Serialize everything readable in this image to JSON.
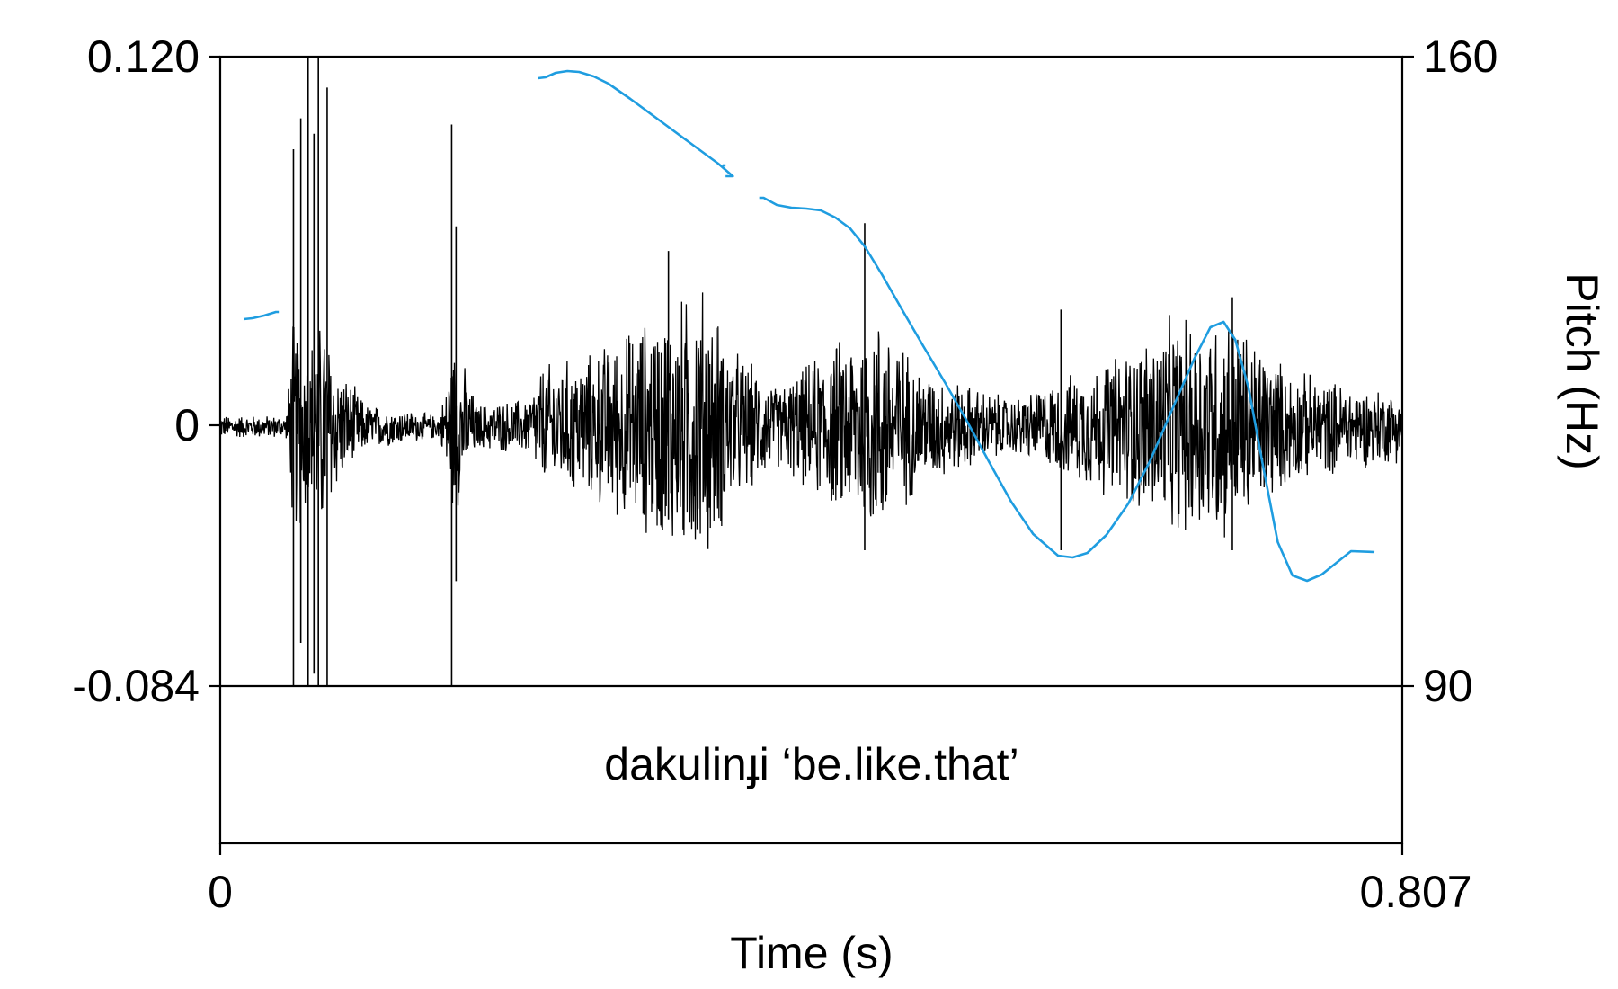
{
  "chart_data": {
    "type": "line",
    "title": "",
    "xlabel": "Time (s)",
    "ylabel_right": "Pitch (Hz)",
    "x_range": [
      0,
      0.807
    ],
    "x_tick_labels": [
      "0",
      "0.807"
    ],
    "amplitude_range": [
      -0.084,
      0.12
    ],
    "amplitude_tick_labels": [
      "0.120",
      "0",
      "-0.084"
    ],
    "pitch_range": [
      90,
      160
    ],
    "pitch_tick_labels": [
      "160",
      "90"
    ],
    "annotation": "dakulinɟi ‘be.like.that’",
    "colors": {
      "waveform": "#000000",
      "pitch": "#1f9de0",
      "frame": "#000000"
    },
    "series": [
      {
        "name": "Pitch",
        "segments": [
          [
            [
              0.016,
              130.8
            ],
            [
              0.022,
              130.9
            ],
            [
              0.03,
              131.2
            ],
            [
              0.038,
              131.6
            ],
            [
              0.04,
              131.6
            ]
          ],
          [
            [
              0.217,
              157.6
            ],
            [
              0.222,
              157.7
            ],
            [
              0.229,
              158.2
            ],
            [
              0.237,
              158.4
            ],
            [
              0.245,
              158.3
            ],
            [
              0.255,
              157.8
            ],
            [
              0.265,
              157.0
            ],
            [
              0.28,
              155.3
            ],
            [
              0.3,
              152.9
            ],
            [
              0.32,
              150.5
            ],
            [
              0.34,
              148.1
            ],
            [
              0.35,
              146.7
            ],
            [
              0.345,
              146.7
            ]
          ],
          [
            [
              0.343,
              147.9
            ],
            [
              0.345,
              147.9
            ]
          ],
          [
            [
              0.368,
              144.3
            ],
            [
              0.371,
              144.3
            ],
            [
              0.38,
              143.5
            ],
            [
              0.39,
              143.2
            ],
            [
              0.4,
              143.1
            ],
            [
              0.41,
              142.9
            ],
            [
              0.42,
              142.1
            ],
            [
              0.43,
              140.9
            ],
            [
              0.44,
              138.9
            ],
            [
              0.452,
              135.7
            ],
            [
              0.465,
              132.0
            ],
            [
              0.48,
              127.8
            ],
            [
              0.495,
              123.7
            ],
            [
              0.51,
              119.4
            ],
            [
              0.525,
              114.9
            ],
            [
              0.54,
              110.5
            ],
            [
              0.555,
              106.9
            ],
            [
              0.572,
              104.5
            ],
            [
              0.582,
              104.3
            ],
            [
              0.592,
              104.8
            ],
            [
              0.605,
              106.8
            ],
            [
              0.62,
              110.3
            ],
            [
              0.635,
              115.1
            ],
            [
              0.65,
              120.8
            ],
            [
              0.665,
              126.4
            ],
            [
              0.676,
              129.9
            ],
            [
              0.685,
              130.5
            ],
            [
              0.693,
              128.5
            ],
            [
              0.702,
              123.2
            ],
            [
              0.712,
              114.4
            ],
            [
              0.722,
              106.0
            ],
            [
              0.732,
              102.3
            ],
            [
              0.742,
              101.7
            ],
            [
              0.752,
              102.4
            ],
            [
              0.762,
              103.7
            ],
            [
              0.772,
              105.0
            ],
            [
              0.788,
              104.9
            ]
          ]
        ]
      }
    ],
    "waveform": {
      "description_free": true,
      "envelope": [
        [
          0.0,
          0.004
        ],
        [
          0.045,
          0.004
        ],
        [
          0.05,
          0.04
        ],
        [
          0.06,
          0.03
        ],
        [
          0.07,
          0.04
        ],
        [
          0.08,
          0.022
        ],
        [
          0.1,
          0.008
        ],
        [
          0.15,
          0.004
        ],
        [
          0.16,
          0.032
        ],
        [
          0.175,
          0.008
        ],
        [
          0.21,
          0.01
        ],
        [
          0.22,
          0.022
        ],
        [
          0.25,
          0.025
        ],
        [
          0.29,
          0.038
        ],
        [
          0.33,
          0.05
        ],
        [
          0.35,
          0.028
        ],
        [
          0.38,
          0.014
        ],
        [
          0.42,
          0.03
        ],
        [
          0.45,
          0.04
        ],
        [
          0.48,
          0.02
        ],
        [
          0.54,
          0.01
        ],
        [
          0.58,
          0.018
        ],
        [
          0.62,
          0.028
        ],
        [
          0.65,
          0.038
        ],
        [
          0.69,
          0.04
        ],
        [
          0.73,
          0.02
        ],
        [
          0.77,
          0.015
        ],
        [
          0.807,
          0.012
        ]
      ],
      "spikes": [
        [
          0.05,
          0.09,
          -0.084
        ],
        [
          0.055,
          0.1,
          -0.07
        ],
        [
          0.06,
          0.12,
          -0.084
        ],
        [
          0.064,
          0.095,
          -0.08
        ],
        [
          0.067,
          0.12,
          -0.084
        ],
        [
          0.073,
          0.11,
          -0.084
        ],
        [
          0.158,
          0.098,
          -0.084
        ],
        [
          0.161,
          0.065,
          -0.05
        ],
        [
          0.306,
          0.057,
          -0.03
        ],
        [
          0.44,
          0.066,
          -0.04
        ],
        [
          0.574,
          0.038,
          -0.04
        ],
        [
          0.691,
          0.042,
          -0.04
        ]
      ]
    }
  }
}
